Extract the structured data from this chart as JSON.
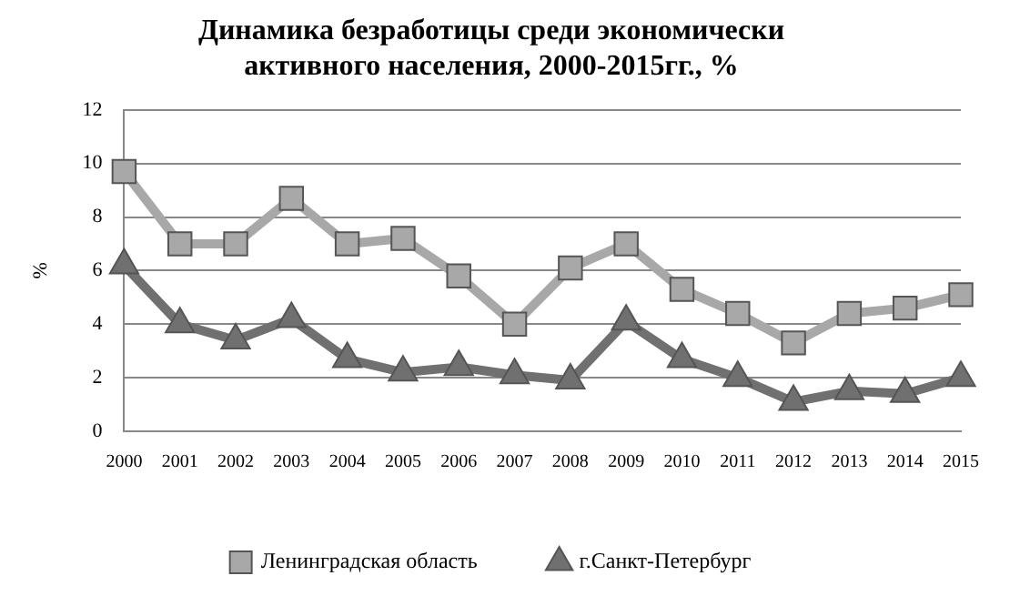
{
  "chart_data": {
    "type": "line",
    "title": "Динамика безработицы среди экономически активного населения, 2000-2015гг., %",
    "ylabel": "%",
    "categories": [
      "2000",
      "2001",
      "2002",
      "2003",
      "2004",
      "2005",
      "2006",
      "2007",
      "2008",
      "2009",
      "2010",
      "2011",
      "2012",
      "2013",
      "2014",
      "2015"
    ],
    "series": [
      {
        "name": "Ленинградская область",
        "color": "#a8a8a8",
        "marker": "square",
        "values": [
          9.7,
          7.0,
          7.0,
          8.7,
          7.0,
          7.2,
          5.8,
          4.0,
          6.1,
          7.0,
          5.3,
          4.4,
          3.3,
          4.4,
          4.6,
          5.1
        ]
      },
      {
        "name": "г.Санкт-Петербург",
        "color": "#707070",
        "marker": "triangle",
        "values": [
          6.2,
          4.0,
          3.4,
          4.2,
          2.7,
          2.2,
          2.4,
          2.1,
          1.9,
          4.1,
          2.7,
          2.0,
          1.1,
          1.5,
          1.4,
          2.0
        ]
      }
    ],
    "ylim": [
      0,
      12
    ],
    "yticks": [
      0,
      2,
      4,
      6,
      8,
      10,
      12
    ],
    "grid": "y",
    "legend": "bottom"
  }
}
